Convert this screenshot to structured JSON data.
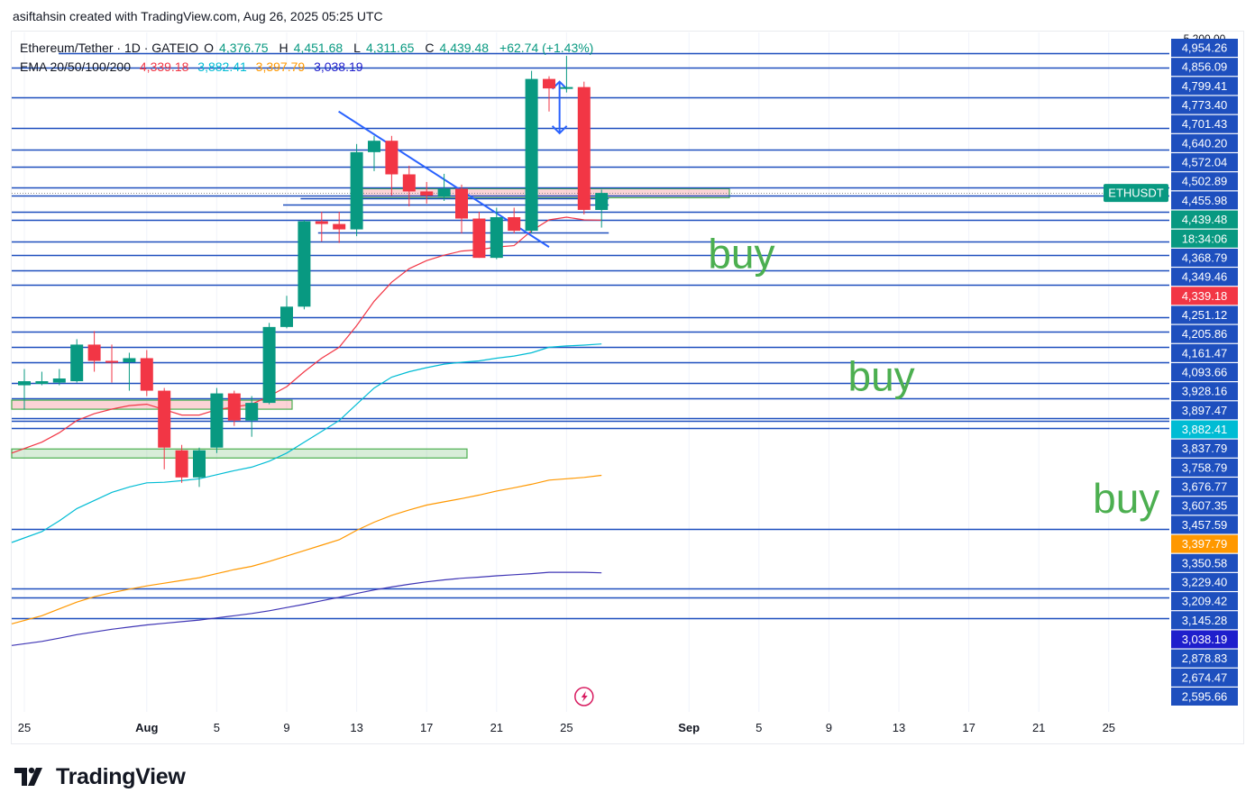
{
  "header": {
    "credit": "asiftahsin created with TradingView.com, Aug 26, 2025 05:25 UTC"
  },
  "legend": {
    "symbol": "Ethereum/Tether · 1D · GATEIO",
    "ohlc": [
      {
        "k": "O",
        "v": "4,376.75"
      },
      {
        "k": "H",
        "v": "4,451.68"
      },
      {
        "k": "L",
        "v": "4,311.65"
      },
      {
        "k": "C",
        "v": "4,439.48"
      }
    ],
    "change": "+62.74 (+1.43%)",
    "ema_label": "EMA 20/50/100/200",
    "ema_values": [
      "4,339.18",
      "3,882.41",
      "3,397.79",
      "3,038.19"
    ]
  },
  "brand": {
    "name": "TradingView"
  },
  "colors": {
    "up": "#089981",
    "down": "#f23645",
    "hline": "#1e4fbe",
    "ema20": "#f23645",
    "ema50": "#00bcd4",
    "ema100": "#ff9800",
    "ema200": "#3f35b5",
    "buy": "#4caf50",
    "grid": "#f0f3fa"
  },
  "chart_data": {
    "type": "candlestick",
    "symbol": "ETHUSDT",
    "interval": "1D",
    "price_axis_labels": [
      "4,954.26",
      "4,856.09",
      "4,799.41",
      "4,773.40",
      "4,701.43",
      "4,640.20",
      "4,572.04",
      "4,502.89",
      "4,455.98",
      "4,439.48",
      "18:34:06",
      "4,368.79",
      "4,349.46",
      "4,339.18",
      "4,251.12",
      "4,205.86",
      "4,161.47",
      "4,093.66",
      "3,928.16",
      "3,897.47",
      "3,882.41",
      "3,837.79",
      "3,758.79",
      "3,676.77",
      "3,607.35",
      "3,457.59",
      "3,397.79",
      "3,350.58",
      "3,229.40",
      "3,209.42",
      "3,145.28",
      "3,038.19",
      "2,878.83",
      "2,674.47",
      "2,595.66"
    ],
    "price_axis_tag_colors": {
      "4,439.48": "#089981",
      "18:34:06": "#089981",
      "4,339.18": "#f23645",
      "3,882.41": "#00bcd4",
      "3,397.79": "#ff9800",
      "3,038.19": "#1e1ecc"
    },
    "last_price_tag": "ETHUSDT",
    "time_axis_labels": [
      {
        "label": "25",
        "idx": 0
      },
      {
        "label": "Aug",
        "idx": 7
      },
      {
        "label": "5",
        "idx": 11
      },
      {
        "label": "9",
        "idx": 15
      },
      {
        "label": "13",
        "idx": 19
      },
      {
        "label": "17",
        "idx": 23
      },
      {
        "label": "21",
        "idx": 27
      },
      {
        "label": "25",
        "idx": 31
      },
      {
        "label": "Sep",
        "idx": 38
      },
      {
        "label": "5",
        "idx": 42
      },
      {
        "label": "9",
        "idx": 46
      },
      {
        "label": "13",
        "idx": 50
      },
      {
        "label": "17",
        "idx": 54
      },
      {
        "label": "21",
        "idx": 58
      },
      {
        "label": "25",
        "idx": 62
      }
    ],
    "candles": [
      {
        "o": 3730,
        "h": 3790,
        "l": 3640,
        "c": 3745
      },
      {
        "o": 3735,
        "h": 3780,
        "l": 3730,
        "c": 3745
      },
      {
        "o": 3740,
        "h": 3790,
        "l": 3730,
        "c": 3755
      },
      {
        "o": 3745,
        "h": 3900,
        "l": 3740,
        "c": 3880
      },
      {
        "o": 3880,
        "h": 3930,
        "l": 3780,
        "c": 3820
      },
      {
        "o": 3820,
        "h": 3880,
        "l": 3740,
        "c": 3815
      },
      {
        "o": 3815,
        "h": 3850,
        "l": 3710,
        "c": 3830
      },
      {
        "o": 3830,
        "h": 3860,
        "l": 3690,
        "c": 3710
      },
      {
        "o": 3710,
        "h": 3720,
        "l": 3420,
        "c": 3500
      },
      {
        "o": 3490,
        "h": 3510,
        "l": 3370,
        "c": 3390
      },
      {
        "o": 3390,
        "h": 3500,
        "l": 3355,
        "c": 3490
      },
      {
        "o": 3500,
        "h": 3720,
        "l": 3480,
        "c": 3700
      },
      {
        "o": 3700,
        "h": 3710,
        "l": 3580,
        "c": 3600
      },
      {
        "o": 3600,
        "h": 3690,
        "l": 3540,
        "c": 3665
      },
      {
        "o": 3665,
        "h": 3960,
        "l": 3660,
        "c": 3945
      },
      {
        "o": 3945,
        "h": 4060,
        "l": 3940,
        "c": 4020
      },
      {
        "o": 4020,
        "h": 4340,
        "l": 4010,
        "c": 4335
      },
      {
        "o": 4335,
        "h": 4370,
        "l": 4260,
        "c": 4325
      },
      {
        "o": 4325,
        "h": 4370,
        "l": 4255,
        "c": 4305
      },
      {
        "o": 4305,
        "h": 4620,
        "l": 4280,
        "c": 4590
      },
      {
        "o": 4590,
        "h": 4650,
        "l": 4520,
        "c": 4632
      },
      {
        "o": 4632,
        "h": 4650,
        "l": 4430,
        "c": 4508
      },
      {
        "o": 4508,
        "h": 4540,
        "l": 4390,
        "c": 4445
      },
      {
        "o": 4445,
        "h": 4480,
        "l": 4400,
        "c": 4430
      },
      {
        "o": 4425,
        "h": 4510,
        "l": 4410,
        "c": 4455
      },
      {
        "o": 4455,
        "h": 4470,
        "l": 4290,
        "c": 4345
      },
      {
        "o": 4345,
        "h": 4370,
        "l": 4200,
        "c": 4200
      },
      {
        "o": 4200,
        "h": 4385,
        "l": 4195,
        "c": 4350
      },
      {
        "o": 4350,
        "h": 4385,
        "l": 4290,
        "c": 4300
      },
      {
        "o": 4300,
        "h": 4890,
        "l": 4290,
        "c": 4860
      },
      {
        "o": 4860,
        "h": 4870,
        "l": 4740,
        "c": 4825
      },
      {
        "o": 4825,
        "h": 4945,
        "l": 4810,
        "c": 4830
      },
      {
        "o": 4830,
        "h": 4850,
        "l": 4360,
        "c": 4377
      },
      {
        "o": 4376.75,
        "h": 4451.68,
        "l": 4311.65,
        "c": 4439.48
      }
    ],
    "ema": {
      "ema20": {
        "label": "EMA 20",
        "from_idx": 0,
        "values": [
          3480,
          3520,
          3555,
          3600,
          3625,
          3642,
          3655,
          3660,
          3640,
          3620,
          3620,
          3640,
          3650,
          3660,
          3690,
          3725,
          3780,
          3830,
          3870,
          3950,
          4040,
          4110,
          4160,
          4190,
          4210,
          4225,
          4230,
          4240,
          4245,
          4300,
          4340,
          4350,
          4340,
          4339.18
        ]
      },
      "ema50": {
        "label": "EMA 50",
        "from_idx": 0,
        "values": [
          3150,
          3190,
          3230,
          3275,
          3305,
          3335,
          3355,
          3370,
          3372,
          3378,
          3385,
          3400,
          3415,
          3428,
          3450,
          3480,
          3520,
          3560,
          3600,
          3660,
          3720,
          3760,
          3780,
          3795,
          3808,
          3815,
          3820,
          3830,
          3838,
          3850,
          3870,
          3875,
          3878,
          3882.41
        ]
      },
      "ema100": {
        "label": "EMA 100",
        "from_idx": 0,
        "values": [
          2850,
          2880,
          2905,
          2930,
          2950,
          2965,
          2978,
          2990,
          3000,
          3010,
          3020,
          3035,
          3050,
          3062,
          3080,
          3100,
          3120,
          3140,
          3160,
          3195,
          3225,
          3250,
          3270,
          3288,
          3300,
          3312,
          3325,
          3340,
          3352,
          3365,
          3380,
          3385,
          3390,
          3397.79
        ]
      },
      "ema200": {
        "label": "EMA 200",
        "from_idx": 0,
        "values": [
          2770,
          2785,
          2797,
          2810,
          2820,
          2830,
          2838,
          2846,
          2852,
          2858,
          2864,
          2872,
          2880,
          2888,
          2898,
          2910,
          2922,
          2935,
          2948,
          2962,
          2975,
          2986,
          2996,
          3005,
          3012,
          3018,
          3022,
          3027,
          3031,
          3035,
          3040,
          3040,
          3040,
          3038.19
        ]
      }
    },
    "horizontal_levels": [
      4956,
      4902,
      4793,
      4680,
      4600,
      4535,
      4460,
      4430,
      4370,
      4340,
      4260,
      4210,
      4155,
      4100,
      3980,
      3928,
      3870,
      3815,
      3737,
      3683,
      3610,
      3600,
      3572,
      3200,
      2979,
      2947,
      2870
    ],
    "short_levels": [
      {
        "price": 4420,
        "from_idx": 16,
        "to_idx": 33
      },
      {
        "price": 4395,
        "from_idx": 15,
        "to_idx": 33
      },
      {
        "price": 4295,
        "from_idx": 17,
        "to_idx": 33
      }
    ],
    "zones": [
      {
        "kind": "supply",
        "y_top": 4455,
        "y_bottom": 4425,
        "from_idx": 19,
        "to_idx": 40
      },
      {
        "kind": "demand-small",
        "y_top": 3675,
        "y_bottom": 3647,
        "from_idx": 0,
        "to_idx": 15
      },
      {
        "kind": "demand",
        "y_top": 3495,
        "y_bottom": 3465,
        "from_idx": 0,
        "to_idx": 25
      }
    ],
    "trendline": {
      "from": {
        "idx": 19,
        "price": 4740
      },
      "to": {
        "idx": 30,
        "price": 4240
      }
    },
    "arrow_range": {
      "idx": 30.6,
      "top": 4850,
      "bottom": 4660
    },
    "annotations": [
      {
        "text": "buy",
        "idx": 41,
        "price": 4162
      },
      {
        "text": "buy",
        "idx": 49,
        "price": 3710
      },
      {
        "text": "buy",
        "idx": 63,
        "price": 3260
      }
    ]
  }
}
